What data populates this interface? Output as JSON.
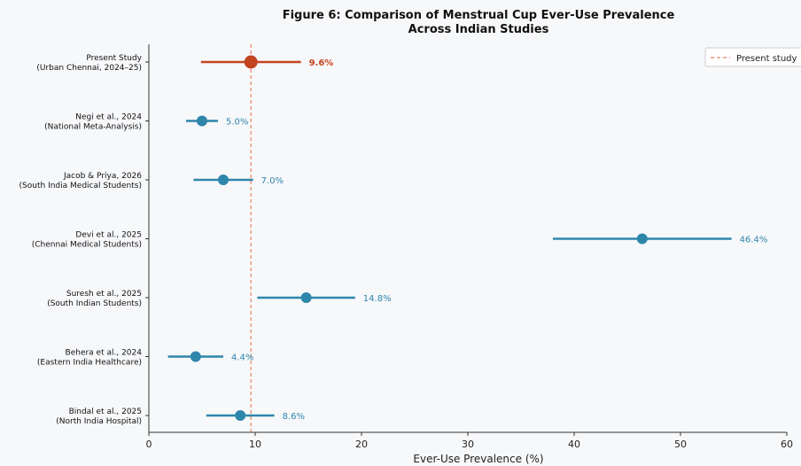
{
  "chart_data": {
    "type": "forest",
    "title": "Figure 6: Comparison of Menstrual Cup Ever-Use Prevalence",
    "subtitle": "Across Indian Studies",
    "xlabel": "Ever-Use Prevalence (%)",
    "xlim": [
      0,
      60
    ],
    "xticks": [
      "0",
      "10",
      "20",
      "30",
      "40",
      "50",
      "60"
    ],
    "reference_line": {
      "value": 9.6,
      "style": "dashed",
      "color": "#e8836a",
      "label": "Present study"
    },
    "legend_position": "top-right",
    "grid": false,
    "colors": {
      "highlight": "#c4431f",
      "default": "#2e86ab",
      "reference": "#e8836a"
    },
    "studies": [
      {
        "label": "Present Study",
        "sublabel": "(Urban Chennai, 2024–25)",
        "value": 9.6,
        "ci": [
          4.9,
          14.3
        ],
        "value_label": "9.6%",
        "highlight": true
      },
      {
        "label": "Negi et al., 2024",
        "sublabel": "(National Meta-Analysis)",
        "value": 5.0,
        "ci": [
          3.5,
          6.5
        ],
        "value_label": "5.0%",
        "highlight": false
      },
      {
        "label": "Jacob & Priya, 2026",
        "sublabel": "(South India Medical Students)",
        "value": 7.0,
        "ci": [
          4.2,
          9.8
        ],
        "value_label": "7.0%",
        "highlight": false
      },
      {
        "label": "Devi et al., 2025",
        "sublabel": "(Chennai Medical Students)",
        "value": 46.4,
        "ci": [
          38.0,
          54.8
        ],
        "value_label": "46.4%",
        "highlight": false
      },
      {
        "label": "Suresh et al., 2025",
        "sublabel": "(South Indian Students)",
        "value": 14.8,
        "ci": [
          10.2,
          19.4
        ],
        "value_label": "14.8%",
        "highlight": false
      },
      {
        "label": "Behera et al., 2024",
        "sublabel": "(Eastern India Healthcare)",
        "value": 4.4,
        "ci": [
          1.8,
          7.0
        ],
        "value_label": "4.4%",
        "highlight": false
      },
      {
        "label": "Bindal et al., 2025",
        "sublabel": "(North India Hospital)",
        "value": 8.6,
        "ci": [
          5.4,
          11.8
        ],
        "value_label": "8.6%",
        "highlight": false
      }
    ]
  }
}
